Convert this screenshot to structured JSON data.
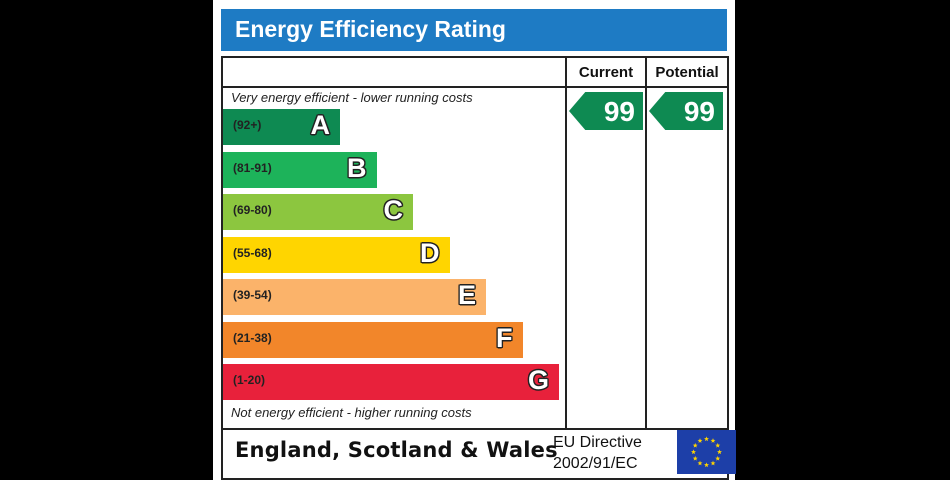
{
  "title": "Energy Efficiency Rating",
  "columns": {
    "current": "Current",
    "potential": "Potential"
  },
  "top_caption": "Very energy efficient - lower running costs",
  "bottom_caption": "Not energy efficient - higher running costs",
  "footer": {
    "region": "England, Scotland & Wales",
    "directive_line1": "EU Directive",
    "directive_line2": "2002/91/EC"
  },
  "colors": {
    "title_bar": "#1e7bc4",
    "rating_arrow": "#0e8a52",
    "eu_flag": "#1d3fa8",
    "eu_stars": "#ffd400"
  },
  "chart_data": {
    "type": "bar",
    "bands": [
      {
        "letter": "A",
        "range": "(92+)",
        "color": "#0e8a52"
      },
      {
        "letter": "B",
        "range": "(81-91)",
        "color": "#1db35a"
      },
      {
        "letter": "C",
        "range": "(69-80)",
        "color": "#8cc63f"
      },
      {
        "letter": "D",
        "range": "(55-68)",
        "color": "#ffd500"
      },
      {
        "letter": "E",
        "range": "(39-54)",
        "color": "#fbb36a"
      },
      {
        "letter": "F",
        "range": "(21-38)",
        "color": "#f2862a"
      },
      {
        "letter": "G",
        "range": "(1-20)",
        "color": "#e8213b"
      }
    ],
    "current": {
      "value": "99",
      "band": "A"
    },
    "potential": {
      "value": "99",
      "band": "A"
    }
  }
}
